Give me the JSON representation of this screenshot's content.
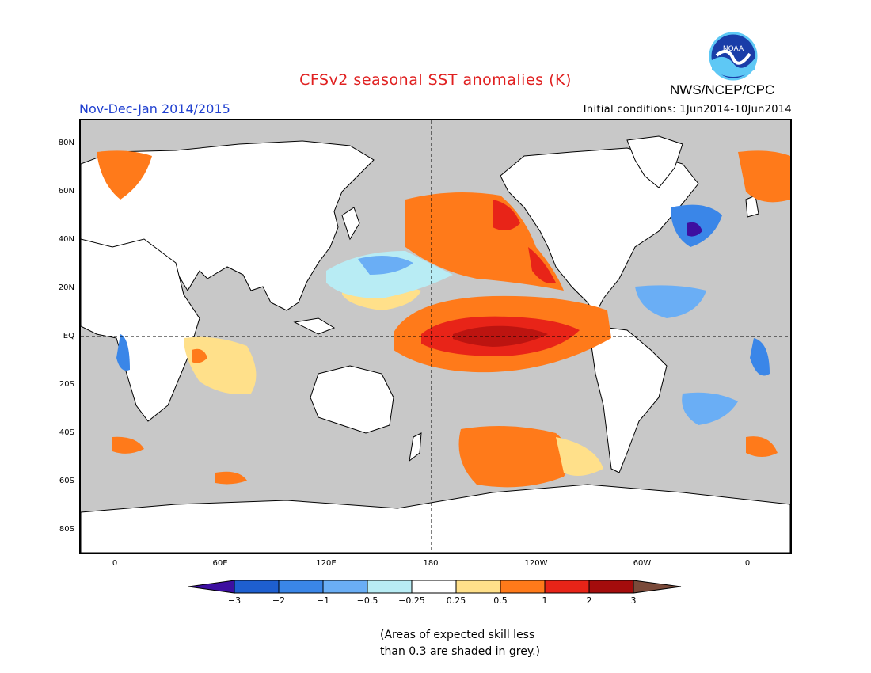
{
  "title": "CFSv2 seasonal SST anomalies (K)",
  "period": "Nov-Dec-Jan 2014/2015",
  "initial_conditions": "Initial conditions: 1Jun2014-10Jun2014",
  "org": "NWS/NCEP/CPC",
  "logo_text": "NOAA",
  "lat_labels": [
    "80N",
    "60N",
    "40N",
    "20N",
    "EQ",
    "20S",
    "40S",
    "60S",
    "80S"
  ],
  "lon_labels": [
    "0",
    "60E",
    "120E",
    "180",
    "120W",
    "60W",
    "0"
  ],
  "colorbar": {
    "ticks": [
      "−3",
      "−2",
      "−1",
      "−0.5",
      "−0.25",
      "0.25",
      "0.5",
      "1",
      "2",
      "3"
    ],
    "colors": [
      "#3d0fa0",
      "#1e5fd0",
      "#3a86e8",
      "#6aaef5",
      "#b8ecf4",
      "#ffffff",
      "#ffe08a",
      "#ff7a1a",
      "#e82418",
      "#a40c0c",
      "#7a4a3a"
    ]
  },
  "note_line1": "(Areas of expected skill less",
  "note_line2": "than 0.3 are shaded in grey.)"
}
